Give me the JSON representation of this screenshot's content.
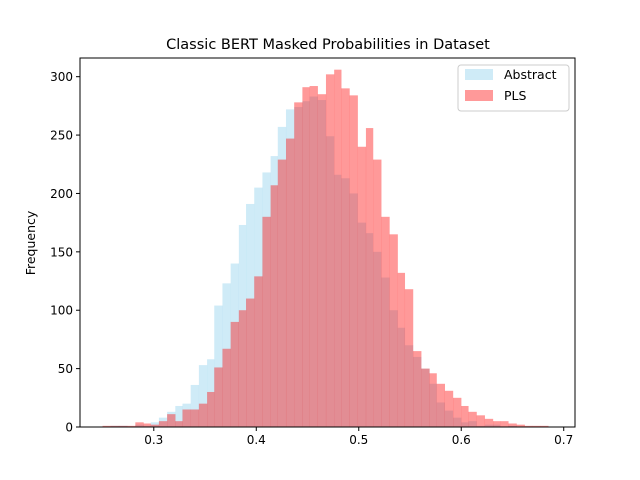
{
  "chart_data": {
    "type": "histogram",
    "title": "Classic BERT Masked Probabilities in Dataset",
    "xlabel": "",
    "ylabel": "Frequency",
    "xlim": [
      0.228,
      0.711
    ],
    "ylim": [
      0,
      316
    ],
    "xticks": [
      0.3,
      0.4,
      0.5,
      0.6,
      0.7
    ],
    "xtick_labels": [
      "0.3",
      "0.4",
      "0.5",
      "0.6",
      "0.7"
    ],
    "yticks": [
      0,
      50,
      100,
      150,
      200,
      250,
      300
    ],
    "ytick_labels": [
      "0",
      "50",
      "100",
      "150",
      "200",
      "250",
      "300"
    ],
    "legend_position": "top-right",
    "series": [
      {
        "name": "Abstract",
        "color": "#87ceeb",
        "opacity": 0.4,
        "bins": [
          [
            0.258,
            0.266,
            1
          ],
          [
            0.266,
            0.274,
            1
          ],
          [
            0.274,
            0.282,
            0
          ],
          [
            0.282,
            0.29,
            2
          ],
          [
            0.29,
            0.297,
            1
          ],
          [
            0.297,
            0.305,
            4
          ],
          [
            0.305,
            0.313,
            8
          ],
          [
            0.313,
            0.321,
            13
          ],
          [
            0.321,
            0.328,
            18
          ],
          [
            0.328,
            0.336,
            20
          ],
          [
            0.336,
            0.344,
            36
          ],
          [
            0.344,
            0.352,
            53
          ],
          [
            0.352,
            0.359,
            58
          ],
          [
            0.359,
            0.367,
            104
          ],
          [
            0.367,
            0.375,
            123
          ],
          [
            0.375,
            0.383,
            140
          ],
          [
            0.383,
            0.39,
            173
          ],
          [
            0.39,
            0.398,
            191
          ],
          [
            0.398,
            0.406,
            205
          ],
          [
            0.406,
            0.414,
            218
          ],
          [
            0.414,
            0.421,
            232
          ],
          [
            0.421,
            0.429,
            257
          ],
          [
            0.429,
            0.437,
            272
          ],
          [
            0.437,
            0.445,
            274
          ],
          [
            0.445,
            0.452,
            279
          ],
          [
            0.452,
            0.46,
            283
          ],
          [
            0.46,
            0.468,
            280
          ],
          [
            0.468,
            0.476,
            249
          ],
          [
            0.476,
            0.483,
            216
          ],
          [
            0.483,
            0.491,
            213
          ],
          [
            0.491,
            0.499,
            200
          ],
          [
            0.499,
            0.507,
            175
          ],
          [
            0.507,
            0.514,
            166
          ],
          [
            0.514,
            0.522,
            150
          ],
          [
            0.522,
            0.53,
            128
          ],
          [
            0.53,
            0.538,
            100
          ],
          [
            0.538,
            0.545,
            85
          ],
          [
            0.545,
            0.553,
            70
          ],
          [
            0.553,
            0.561,
            60
          ],
          [
            0.561,
            0.569,
            50
          ],
          [
            0.569,
            0.576,
            37
          ],
          [
            0.576,
            0.584,
            21
          ],
          [
            0.584,
            0.592,
            14
          ],
          [
            0.592,
            0.6,
            8
          ],
          [
            0.6,
            0.607,
            4
          ],
          [
            0.607,
            0.615,
            5
          ],
          [
            0.615,
            0.623,
            1
          ],
          [
            0.623,
            0.631,
            2
          ],
          [
            0.631,
            0.638,
            2
          ],
          [
            0.638,
            0.646,
            0
          ],
          [
            0.646,
            0.654,
            1
          ]
        ]
      },
      {
        "name": "PLS",
        "color": "#ff0000",
        "opacity": 0.4,
        "bins": [
          [
            0.25,
            0.258,
            1
          ],
          [
            0.258,
            0.266,
            1
          ],
          [
            0.266,
            0.274,
            1
          ],
          [
            0.274,
            0.282,
            1
          ],
          [
            0.282,
            0.29,
            4
          ],
          [
            0.29,
            0.297,
            3
          ],
          [
            0.297,
            0.305,
            2
          ],
          [
            0.305,
            0.313,
            5
          ],
          [
            0.313,
            0.321,
            11
          ],
          [
            0.321,
            0.328,
            5
          ],
          [
            0.328,
            0.336,
            15
          ],
          [
            0.336,
            0.344,
            15
          ],
          [
            0.344,
            0.352,
            20
          ],
          [
            0.352,
            0.359,
            30
          ],
          [
            0.359,
            0.367,
            51
          ],
          [
            0.367,
            0.375,
            67
          ],
          [
            0.375,
            0.383,
            90
          ],
          [
            0.383,
            0.39,
            100
          ],
          [
            0.39,
            0.398,
            110
          ],
          [
            0.398,
            0.406,
            129
          ],
          [
            0.406,
            0.414,
            180
          ],
          [
            0.414,
            0.421,
            207
          ],
          [
            0.421,
            0.429,
            229
          ],
          [
            0.429,
            0.437,
            247
          ],
          [
            0.437,
            0.445,
            278
          ],
          [
            0.445,
            0.452,
            291
          ],
          [
            0.452,
            0.46,
            292
          ],
          [
            0.46,
            0.468,
            285
          ],
          [
            0.468,
            0.476,
            302
          ],
          [
            0.476,
            0.483,
            306
          ],
          [
            0.483,
            0.491,
            290
          ],
          [
            0.491,
            0.499,
            284
          ],
          [
            0.499,
            0.507,
            240
          ],
          [
            0.507,
            0.514,
            256
          ],
          [
            0.514,
            0.522,
            229
          ],
          [
            0.522,
            0.53,
            180
          ],
          [
            0.53,
            0.538,
            165
          ],
          [
            0.538,
            0.545,
            132
          ],
          [
            0.545,
            0.553,
            118
          ],
          [
            0.553,
            0.561,
            65
          ],
          [
            0.561,
            0.569,
            50
          ],
          [
            0.569,
            0.576,
            46
          ],
          [
            0.576,
            0.584,
            37
          ],
          [
            0.584,
            0.592,
            31
          ],
          [
            0.592,
            0.6,
            25
          ],
          [
            0.6,
            0.607,
            18
          ],
          [
            0.607,
            0.615,
            13
          ],
          [
            0.615,
            0.623,
            10
          ],
          [
            0.623,
            0.631,
            7
          ],
          [
            0.631,
            0.638,
            5
          ],
          [
            0.638,
            0.646,
            5
          ],
          [
            0.646,
            0.654,
            3
          ],
          [
            0.654,
            0.662,
            2
          ],
          [
            0.662,
            0.669,
            1
          ],
          [
            0.669,
            0.677,
            1
          ],
          [
            0.677,
            0.685,
            1
          ]
        ]
      }
    ]
  }
}
